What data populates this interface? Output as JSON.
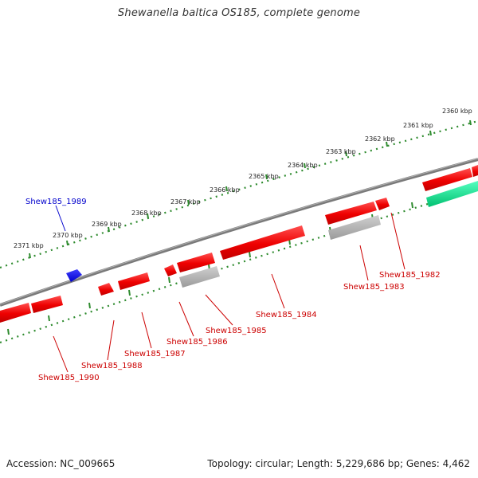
{
  "title": "Shewanella baltica OS185, complete genome",
  "footer": {
    "accession": "Accession: NC_009665",
    "topology": "Topology: circular; Length: 5,229,686 bp; Genes: 4,462"
  },
  "colors": {
    "backbone": "#7a7a7a",
    "ticks": "#2e8b2e",
    "gene_forward": "#ff0000",
    "gene_reverse": "#ff0000",
    "pseudo_gene": "#a9a9a9",
    "rna_gene": "#00e08a",
    "highlight_gene": "#0000ff",
    "label_red": "#cc0000",
    "label_blue": "#0000cc"
  },
  "scale_labels": [
    "2360 kbp",
    "2361 kbp",
    "2362 kbp",
    "2363 kbp",
    "2364 kbp",
    "2365 kbp",
    "2366 kbp",
    "2367 kbp",
    "2368 kbp",
    "2369 kbp",
    "2370 kbp",
    "2371 kbp"
  ],
  "gene_labels": [
    {
      "text": "Shew185_1982",
      "color": "red"
    },
    {
      "text": "Shew185_1983",
      "color": "red"
    },
    {
      "text": "Shew185_1984",
      "color": "red"
    },
    {
      "text": "Shew185_1985",
      "color": "red"
    },
    {
      "text": "Shew185_1986",
      "color": "red"
    },
    {
      "text": "Shew185_1987",
      "color": "red"
    },
    {
      "text": "Shew185_1988",
      "color": "red"
    },
    {
      "text": "Shew185_1989",
      "color": "blue"
    },
    {
      "text": "Shew185_1990",
      "color": "red"
    }
  ]
}
